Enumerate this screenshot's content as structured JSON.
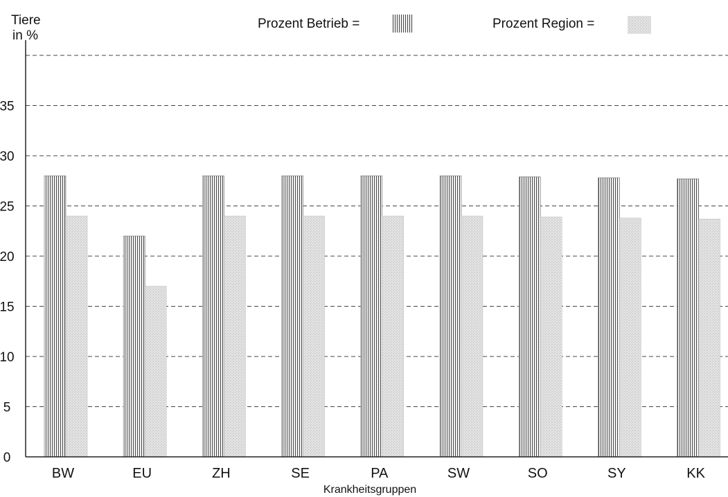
{
  "chart_data": {
    "type": "bar",
    "title": "",
    "ylabel_line1": "Tiere",
    "ylabel_line2": "in %",
    "xlabel": "Krankheitsgruppen",
    "categories": [
      "BW",
      "EU",
      "ZH",
      "SE",
      "PA",
      "SW",
      "SO",
      "SY",
      "KK"
    ],
    "series": [
      {
        "name": "Prozent Betrieb",
        "values": [
          28,
          22,
          28,
          28,
          28,
          28,
          27.9,
          27.8,
          27.7
        ],
        "pattern": "vertical-lines"
      },
      {
        "name": "Prozent Region",
        "values": [
          24,
          17,
          24,
          24,
          24,
          24,
          23.9,
          23.8,
          23.7
        ],
        "pattern": "light-stipple"
      }
    ],
    "legend": [
      {
        "label": "Prozent Betrieb =",
        "pattern": "vertical-lines"
      },
      {
        "label": "Prozent Region =",
        "pattern": "light-stipple"
      }
    ],
    "legend_position": "top",
    "yticks": [
      0,
      5,
      10,
      15,
      20,
      25,
      30,
      35
    ],
    "ylim": [
      0,
      40
    ],
    "grid": "dashed-horizontal",
    "colors": {
      "bar_line": "#555555",
      "region_fill": "#dcdcdc",
      "grid": "#444444"
    }
  }
}
